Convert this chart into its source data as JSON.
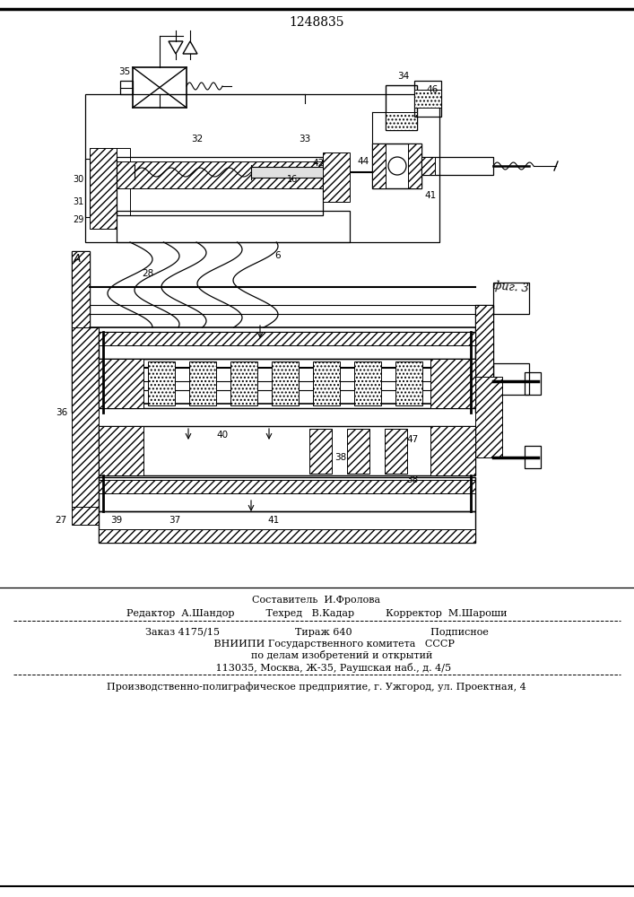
{
  "patent_number": "1248835",
  "fig_label": "фиг. 3",
  "background_color": "#ffffff",
  "footer_lines": [
    "Составитель  И.Фролова",
    "Редактор  А.Шандор          Техред   В.Кадар          Корректор  М.Шароши",
    "Заказ 4175/15                        Тираж 640                         Подписное",
    "           ВНИИПИ Государственного комитета   СССР",
    "                по делам изобретений и открытий",
    "           113035, Москва, Ж-35, Раушская наб., д. 4/5",
    "Производственно-полиграфическое предприятие, г. Ужгород, ул. Проектная, 4"
  ]
}
